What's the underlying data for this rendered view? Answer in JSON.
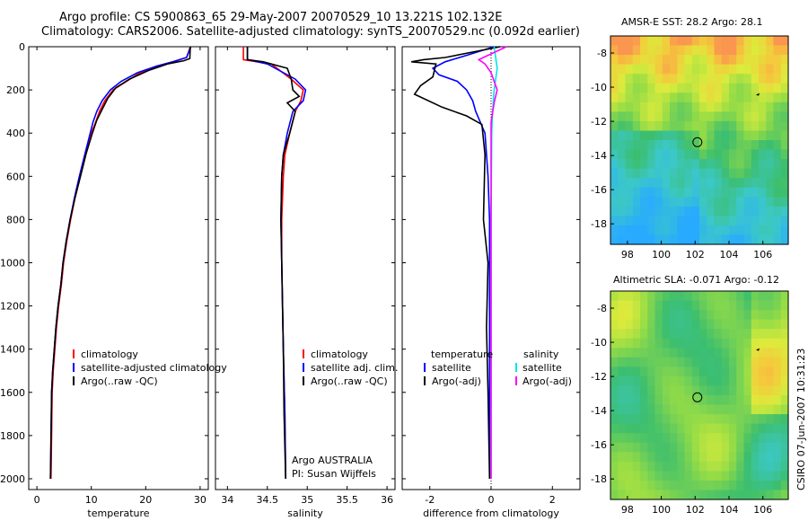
{
  "header": {
    "line1": "Argo profile: CS 5900863_65 29-May-2007 20070529_10 13.221S 102.132E",
    "line2": "Climatology: CARS2006. Satellite-adjusted climatology: synTS_20070529.nc (0.092d earlier)"
  },
  "colors": {
    "climatology": "#ff0000",
    "satellite": "#0000ff",
    "argo": "#000000",
    "sal_satellite": "#00e5ee",
    "argo_adj": "#ff00ff"
  },
  "chart_data": [
    {
      "type": "line",
      "panel": "temperature",
      "xlabel": "temperature",
      "ylabel": "",
      "xlim": [
        -1.5,
        31.5
      ],
      "ylim": [
        2050,
        0
      ],
      "xticks": [
        0,
        10,
        20,
        30
      ],
      "yticks": [
        0,
        200,
        400,
        600,
        800,
        1000,
        1200,
        1400,
        1600,
        1800,
        2000
      ],
      "legend": [
        "climatology",
        "satellite-adjusted climatology",
        "Argo(..raw -QC)"
      ],
      "series": [
        {
          "name": "climatology",
          "color": "#ff0000",
          "x": [
            28.2,
            27.5,
            25,
            22,
            19,
            16.5,
            14,
            12.5,
            11.5,
            10.8,
            10,
            9,
            8,
            7,
            6.2,
            5.5,
            4.9,
            4.5,
            4,
            3.6,
            3.3,
            3,
            2.8,
            2.6
          ],
          "y": [
            0,
            50,
            70,
            90,
            120,
            160,
            200,
            250,
            300,
            350,
            400,
            500,
            600,
            700,
            800,
            900,
            1000,
            1100,
            1200,
            1300,
            1400,
            1500,
            1600,
            2000
          ]
        },
        {
          "name": "satellite-adjusted climatology",
          "color": "#0000ff",
          "x": [
            28.3,
            27.5,
            25,
            22,
            18.5,
            15.5,
            13.5,
            12,
            11,
            10.3,
            9.8,
            8.8,
            7.8,
            6.9,
            6.1,
            5.4,
            4.8,
            4.4,
            3.9,
            3.5,
            3.2,
            2.9,
            2.7,
            2.5
          ],
          "y": [
            0,
            50,
            70,
            90,
            120,
            160,
            200,
            250,
            300,
            350,
            400,
            500,
            600,
            700,
            800,
            900,
            1000,
            1100,
            1200,
            1300,
            1400,
            1500,
            1600,
            2000
          ]
        },
        {
          "name": "Argo(..raw -QC)",
          "color": "#000000",
          "x": [
            28.2,
            28.1,
            27,
            24,
            20.5,
            17,
            14.5,
            13,
            12,
            11,
            10.2,
            9,
            8,
            7,
            6.1,
            5.4,
            4.8,
            4.4,
            3.9,
            3.5,
            3.2,
            2.9,
            2.7,
            2.5
          ],
          "y": [
            0,
            55,
            65,
            80,
            110,
            150,
            190,
            240,
            290,
            340,
            400,
            500,
            600,
            700,
            800,
            900,
            1000,
            1100,
            1200,
            1300,
            1400,
            1500,
            1600,
            2000
          ]
        }
      ]
    },
    {
      "type": "line",
      "panel": "salinity",
      "xlabel": "salinity",
      "ylabel": "",
      "xlim": [
        33.85,
        36.1
      ],
      "ylim": [
        2050,
        0
      ],
      "xticks": [
        34,
        34.5,
        35,
        35.5,
        36
      ],
      "legend": [
        "climatology",
        "satellite adj. clim.",
        "Argo(..raw -QC)"
      ],
      "annotation": [
        "Argo AUSTRALIA",
        "PI: Susan Wijffels"
      ],
      "series": [
        {
          "name": "climatology",
          "color": "#ff0000",
          "x": [
            34.2,
            34.2,
            34.55,
            34.8,
            34.95,
            34.92,
            34.85,
            34.78,
            34.72,
            34.7,
            34.68,
            34.68,
            34.69,
            34.7,
            34.72,
            34.73
          ],
          "y": [
            0,
            60,
            80,
            150,
            200,
            250,
            300,
            400,
            500,
            600,
            800,
            1000,
            1200,
            1400,
            1700,
            2000
          ]
        },
        {
          "name": "satellite adj. clim.",
          "color": "#0000ff",
          "x": [
            34.25,
            34.25,
            34.5,
            34.85,
            34.98,
            34.95,
            34.82,
            34.75,
            34.7,
            34.68,
            34.67,
            34.68,
            34.69,
            34.7,
            34.72,
            34.73
          ],
          "y": [
            0,
            60,
            80,
            150,
            200,
            250,
            300,
            400,
            500,
            600,
            800,
            1000,
            1200,
            1400,
            1700,
            2000
          ]
        },
        {
          "name": "Argo(..raw -QC)",
          "color": "#000000",
          "x": [
            34.25,
            34.25,
            34.45,
            34.75,
            34.8,
            34.82,
            34.9,
            34.75,
            34.85,
            34.78,
            34.7,
            34.68,
            34.67,
            34.68,
            34.7,
            34.71,
            34.73
          ],
          "y": [
            0,
            60,
            70,
            100,
            150,
            200,
            230,
            260,
            300,
            400,
            500,
            600,
            800,
            1000,
            1400,
            1700,
            2000
          ]
        }
      ]
    },
    {
      "type": "line",
      "panel": "difference",
      "xlabel": "difference from climatology",
      "ylabel": "",
      "xlim": [
        -2.9,
        2.9
      ],
      "ylim": [
        2050,
        0
      ],
      "xticks": [
        -2,
        0,
        2
      ],
      "legend_temperature": [
        "temperature",
        "satellite",
        "Argo(-adj)"
      ],
      "legend_salinity": [
        "salinity",
        "satellite",
        "Argo(-adj)"
      ],
      "series": [
        {
          "name": "temperature satellite",
          "color": "#0000ff",
          "x": [
            0.1,
            -0.8,
            -1.5,
            -1.9,
            -1.7,
            -1.1,
            -0.8,
            -0.6,
            -0.5,
            -0.2,
            -0.1,
            -0.05,
            -0.05,
            -0.05,
            -0.05
          ],
          "y": [
            0,
            40,
            70,
            100,
            130,
            160,
            200,
            250,
            300,
            400,
            600,
            800,
            1200,
            1600,
            2000
          ]
        },
        {
          "name": "temperature Argo(-adj)",
          "color": "#000000",
          "x": [
            0.3,
            -1.5,
            -2.2,
            -2.6,
            -1.8,
            -1.9,
            -2.3,
            -2.5,
            -1.6,
            -0.8,
            -0.3,
            -0.2,
            -0.25,
            -0.1,
            -0.15,
            -0.1,
            -0.05
          ],
          "y": [
            0,
            50,
            60,
            70,
            80,
            140,
            180,
            220,
            280,
            320,
            360,
            500,
            800,
            1000,
            1300,
            1600,
            2000
          ]
        },
        {
          "name": "salinity satellite",
          "color": "#00e5ee",
          "x": [
            0.1,
            0.15,
            0.2,
            0.15,
            0.1,
            0.05,
            0.02,
            0.0,
            0.0,
            0.0,
            0.0
          ],
          "y": [
            0,
            50,
            100,
            150,
            200,
            300,
            400,
            800,
            1200,
            1600,
            2000
          ]
        },
        {
          "name": "salinity Argo(-adj)",
          "color": "#ff00ff",
          "x": [
            0.5,
            -0.4,
            -0.2,
            0.0,
            0.1,
            0.2,
            0.1,
            0.0,
            0.0,
            0.0,
            0.0
          ],
          "y": [
            0,
            60,
            80,
            120,
            160,
            200,
            260,
            350,
            600,
            1200,
            2000
          ]
        }
      ]
    }
  ],
  "map_top": {
    "title": "AMSR-E SST: 28.2 Argo: 28.1",
    "xticks": [
      "98",
      "100",
      "102",
      "104",
      "106"
    ],
    "yticks": [
      "-8",
      "-10",
      "-12",
      "-14",
      "-16",
      "-18"
    ]
  },
  "map_bottom": {
    "title": "Altimetric SLA: -0.071 Argo: -0.12",
    "xticks": [
      "98",
      "100",
      "102",
      "104",
      "106"
    ],
    "yticks": [
      "-8",
      "-10",
      "-12",
      "-14",
      "-16",
      "-18"
    ]
  },
  "side_label": "CSIRO 07-Jun-2007 10:31:23"
}
